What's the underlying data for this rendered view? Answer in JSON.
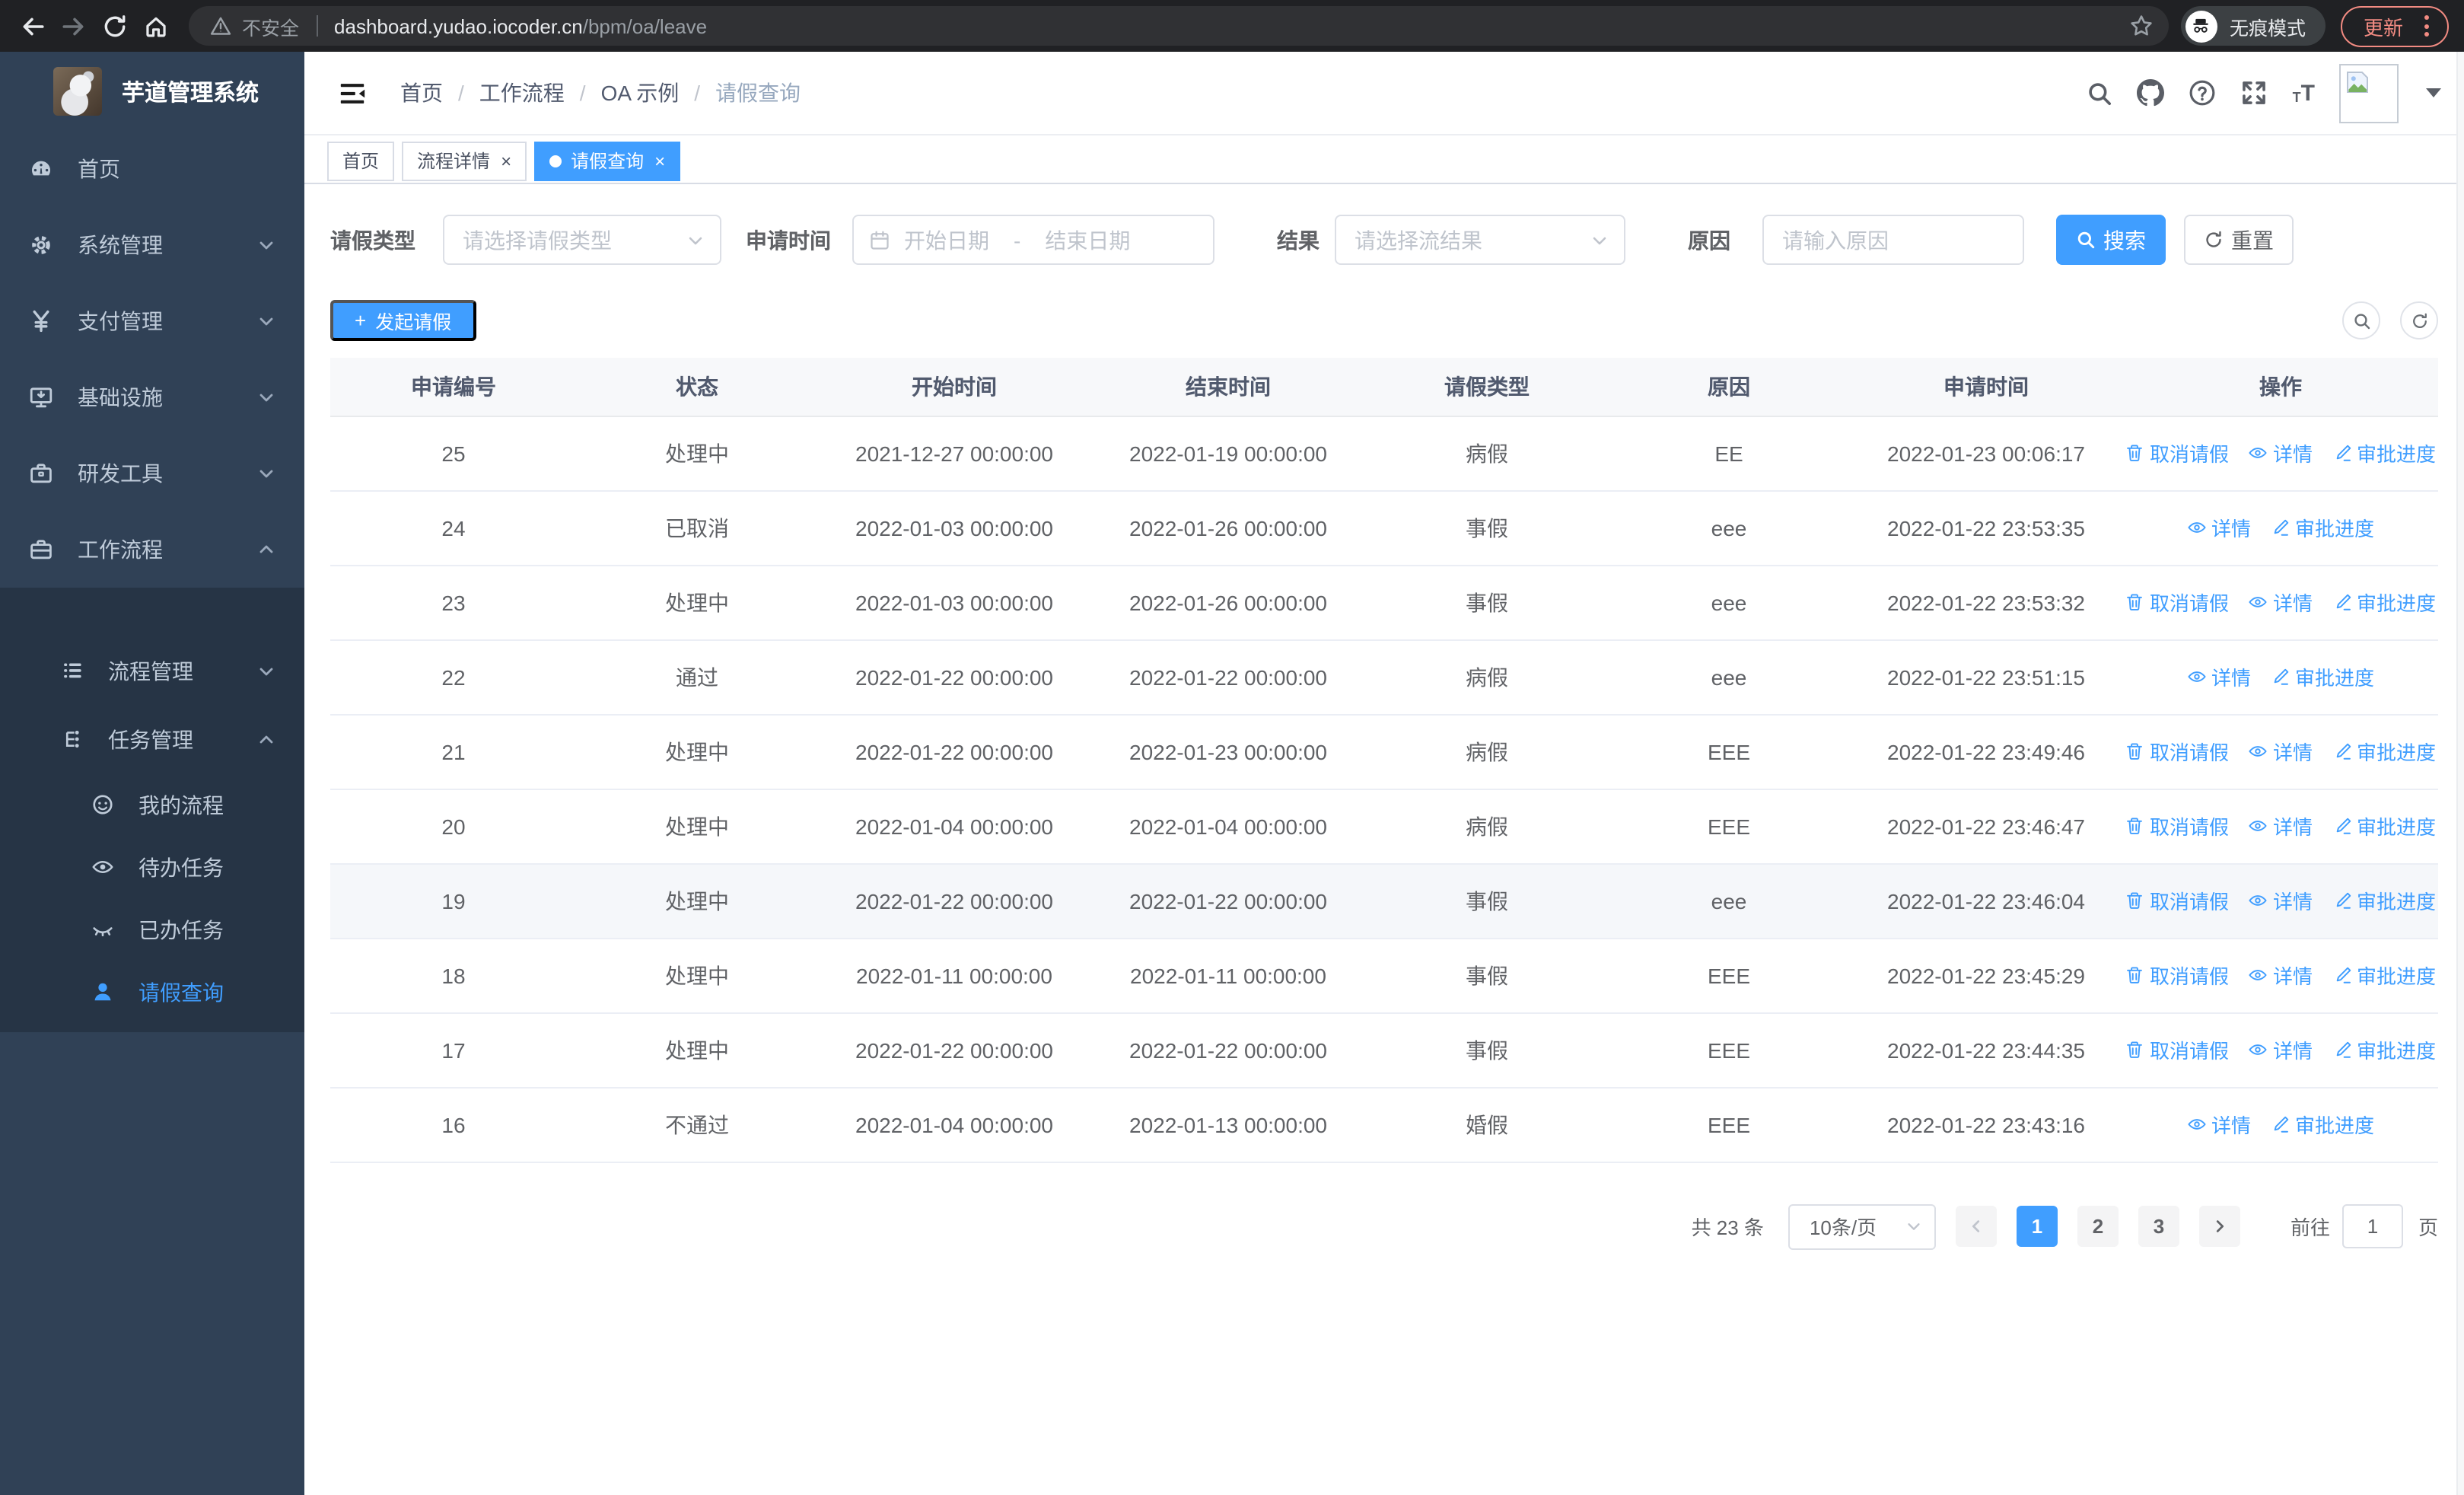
{
  "browser": {
    "security_label": "不安全",
    "url_host": "dashboard.yudao.iocoder.cn",
    "url_path": "/bpm/oa/leave",
    "incognito_label": "无痕模式",
    "update_label": "更新"
  },
  "sidebar": {
    "title": "芋道管理系统",
    "items": [
      {
        "name": "home",
        "label": "首页",
        "icon": "dashboard-icon",
        "level": 1
      },
      {
        "name": "system",
        "label": "系统管理",
        "icon": "gear-icon",
        "level": 1,
        "arrow": "down"
      },
      {
        "name": "payment",
        "label": "支付管理",
        "icon": "yen-icon",
        "level": 1,
        "arrow": "down"
      },
      {
        "name": "infra",
        "label": "基础设施",
        "icon": "monitor-icon",
        "level": 1,
        "arrow": "down"
      },
      {
        "name": "devtools",
        "label": "研发工具",
        "icon": "toolbox-icon",
        "level": 1,
        "arrow": "down"
      },
      {
        "name": "workflow",
        "label": "工作流程",
        "icon": "briefcase-icon",
        "level": 1,
        "arrow": "up"
      },
      {
        "name": "process-mgmt",
        "label": "流程管理",
        "icon": "list-icon",
        "level": 2,
        "arrow": "down"
      },
      {
        "name": "task-mgmt",
        "label": "任务管理",
        "icon": "flow-icon",
        "level": 2,
        "arrow": "up"
      },
      {
        "name": "my-process",
        "label": "我的流程",
        "icon": "face-icon",
        "level": 3
      },
      {
        "name": "todo-tasks",
        "label": "待办任务",
        "icon": "eye-icon",
        "level": 3
      },
      {
        "name": "done-tasks",
        "label": "已办任务",
        "icon": "eye-closed-icon",
        "level": 3
      },
      {
        "name": "leave-query",
        "label": "请假查询",
        "icon": "user-icon",
        "level": 3,
        "active": true
      }
    ]
  },
  "header": {
    "breadcrumb": [
      "首页",
      "工作流程",
      "OA 示例",
      "请假查询"
    ]
  },
  "tabs": [
    {
      "label": "首页",
      "closable": false,
      "active": false
    },
    {
      "label": "流程详情",
      "closable": true,
      "active": false
    },
    {
      "label": "请假查询",
      "closable": true,
      "active": true
    }
  ],
  "filters": {
    "leave_type_label": "请假类型",
    "leave_type_placeholder": "请选择请假类型",
    "apply_time_label": "申请时间",
    "start_date_placeholder": "开始日期",
    "range_separator": "-",
    "end_date_placeholder": "结束日期",
    "result_label": "结果",
    "result_placeholder": "请选择流结果",
    "reason_label": "原因",
    "reason_placeholder": "请输入原因",
    "search_label": "搜索",
    "reset_label": "重置"
  },
  "toolbar": {
    "create_label": "发起请假"
  },
  "table": {
    "headers": [
      "申请编号",
      "状态",
      "开始时间",
      "结束时间",
      "请假类型",
      "原因",
      "申请时间",
      "操作"
    ],
    "action_labels": {
      "cancel": "取消请假",
      "detail": "详情",
      "progress": "审批进度"
    },
    "rows": [
      {
        "id": "25",
        "status": "处理中",
        "start": "2021-12-27 00:00:00",
        "end": "2022-01-19 00:00:00",
        "type": "病假",
        "reason": "EE",
        "apply_time": "2022-01-23 00:06:17",
        "actions": [
          "cancel",
          "detail",
          "progress"
        ],
        "highlight": false
      },
      {
        "id": "24",
        "status": "已取消",
        "start": "2022-01-03 00:00:00",
        "end": "2022-01-26 00:00:00",
        "type": "事假",
        "reason": "eee",
        "apply_time": "2022-01-22 23:53:35",
        "actions": [
          "detail",
          "progress"
        ],
        "highlight": false
      },
      {
        "id": "23",
        "status": "处理中",
        "start": "2022-01-03 00:00:00",
        "end": "2022-01-26 00:00:00",
        "type": "事假",
        "reason": "eee",
        "apply_time": "2022-01-22 23:53:32",
        "actions": [
          "cancel",
          "detail",
          "progress"
        ],
        "highlight": false
      },
      {
        "id": "22",
        "status": "通过",
        "start": "2022-01-22 00:00:00",
        "end": "2022-01-22 00:00:00",
        "type": "病假",
        "reason": "eee",
        "apply_time": "2022-01-22 23:51:15",
        "actions": [
          "detail",
          "progress"
        ],
        "highlight": false
      },
      {
        "id": "21",
        "status": "处理中",
        "start": "2022-01-22 00:00:00",
        "end": "2022-01-23 00:00:00",
        "type": "病假",
        "reason": "EEE",
        "apply_time": "2022-01-22 23:49:46",
        "actions": [
          "cancel",
          "detail",
          "progress"
        ],
        "highlight": false
      },
      {
        "id": "20",
        "status": "处理中",
        "start": "2022-01-04 00:00:00",
        "end": "2022-01-04 00:00:00",
        "type": "病假",
        "reason": "EEE",
        "apply_time": "2022-01-22 23:46:47",
        "actions": [
          "cancel",
          "detail",
          "progress"
        ],
        "highlight": false
      },
      {
        "id": "19",
        "status": "处理中",
        "start": "2022-01-22 00:00:00",
        "end": "2022-01-22 00:00:00",
        "type": "事假",
        "reason": "eee",
        "apply_time": "2022-01-22 23:46:04",
        "actions": [
          "cancel",
          "detail",
          "progress"
        ],
        "highlight": true
      },
      {
        "id": "18",
        "status": "处理中",
        "start": "2022-01-11 00:00:00",
        "end": "2022-01-11 00:00:00",
        "type": "事假",
        "reason": "EEE",
        "apply_time": "2022-01-22 23:45:29",
        "actions": [
          "cancel",
          "detail",
          "progress"
        ],
        "highlight": false
      },
      {
        "id": "17",
        "status": "处理中",
        "start": "2022-01-22 00:00:00",
        "end": "2022-01-22 00:00:00",
        "type": "事假",
        "reason": "EEE",
        "apply_time": "2022-01-22 23:44:35",
        "actions": [
          "cancel",
          "detail",
          "progress"
        ],
        "highlight": false
      },
      {
        "id": "16",
        "status": "不通过",
        "start": "2022-01-04 00:00:00",
        "end": "2022-01-13 00:00:00",
        "type": "婚假",
        "reason": "EEE",
        "apply_time": "2022-01-22 23:43:16",
        "actions": [
          "detail",
          "progress"
        ],
        "highlight": false
      }
    ]
  },
  "pagination": {
    "total_label": "共 23 条",
    "page_size": "10条/页",
    "pages": [
      "1",
      "2",
      "3"
    ],
    "active_page": "1",
    "goto_label": "前往",
    "goto_value": "1",
    "goto_suffix": "页"
  },
  "colors": {
    "accent": "#409eff",
    "sidebar_bg": "#304156",
    "sidebar_submenu_bg": "#263445",
    "sidebar_text": "#bfcbd9",
    "update_button": "#f28b82",
    "table_border": "#ebeef5"
  }
}
